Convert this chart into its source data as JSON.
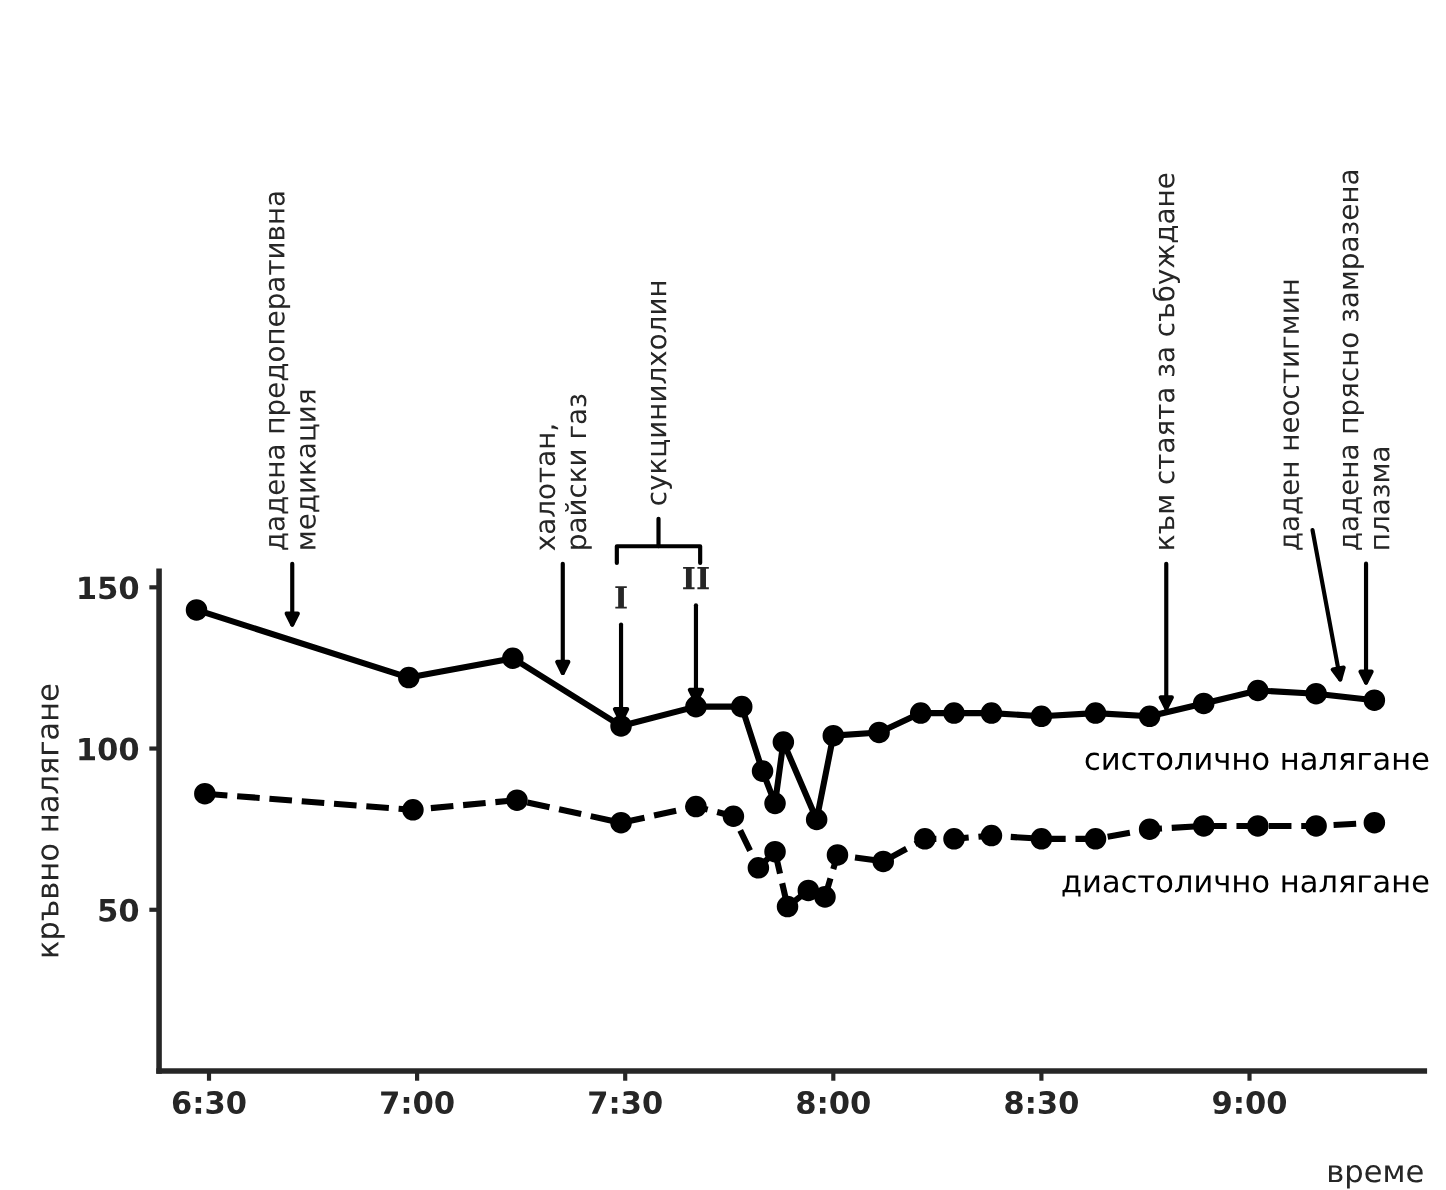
{
  "chart_data": {
    "type": "line",
    "xlabel": "време",
    "ylabel": "кръвно налягане",
    "xlim": [
      6.38,
      9.42
    ],
    "ylim": [
      0,
      155
    ],
    "xticks": [
      {
        "value": 6.5,
        "label": "6:30"
      },
      {
        "value": 7,
        "label": "7:00"
      },
      {
        "value": 7.5,
        "label": "7:30"
      },
      {
        "value": 8,
        "label": "8:00"
      },
      {
        "value": 8.5,
        "label": "8:30"
      },
      {
        "value": 9,
        "label": "9:00"
      }
    ],
    "yticks": [
      50,
      100,
      150
    ],
    "grid": false,
    "legend": false,
    "marker": "circle",
    "series": [
      {
        "name": "систолично налягане",
        "color": "#000000",
        "line_style": "solid",
        "x": [
          6.47,
          6.98,
          7.23,
          7.49,
          7.67,
          7.78,
          7.83,
          7.86,
          7.88,
          7.96,
          8.0,
          8.11,
          8.21,
          8.29,
          8.38,
          8.5,
          8.63,
          8.76,
          8.89,
          9.02,
          9.16,
          9.3
        ],
        "values": [
          143,
          122,
          128,
          107,
          113,
          113,
          93,
          83,
          102,
          78,
          104,
          105,
          111,
          111,
          111,
          110,
          111,
          110,
          114,
          118,
          117,
          115
        ]
      },
      {
        "name": "диастолично налягане",
        "color": "#000000",
        "line_style": "dashed",
        "x": [
          6.49,
          6.99,
          7.24,
          7.49,
          7.67,
          7.76,
          7.82,
          7.86,
          7.89,
          7.94,
          7.98,
          8.01,
          8.12,
          8.22,
          8.29,
          8.38,
          8.5,
          8.63,
          8.76,
          8.89,
          9.02,
          9.16,
          9.3
        ],
        "values": [
          86,
          81,
          84,
          77,
          82,
          79,
          63,
          68,
          51,
          56,
          54,
          67,
          65,
          72,
          72,
          73,
          72,
          72,
          75,
          76,
          76,
          76,
          77
        ]
      }
    ],
    "annotations": [
      {
        "text": "дадена предоперативна\nмедикация",
        "x": 6.7,
        "y": 137
      },
      {
        "text": "халотан,\nрайски газ",
        "x": 7.35,
        "y": 122
      },
      "сукцинилхолин",
      {
        "text": "I",
        "x": 7.49,
        "y": 107
      },
      {
        "text": "II",
        "x": 7.67,
        "y": 113
      },
      {
        "text": "към стаята за събуждане",
        "x": 8.8,
        "y": 111
      },
      {
        "text": "даден неостигмин",
        "x": 9.22,
        "y": 120
      },
      {
        "text": "дадена прясно замразена\nплазма",
        "x": 9.28,
        "y": 119
      }
    ]
  }
}
